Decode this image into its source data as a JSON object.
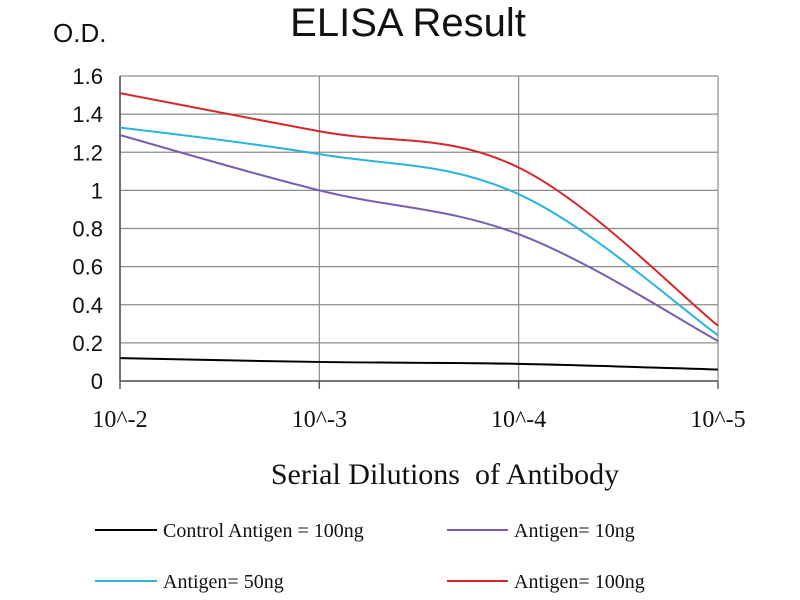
{
  "chart_data": {
    "type": "line",
    "title": "ELISA Result",
    "ylabel": "O.D.",
    "xlabel": "Serial Dilutions  of Antibody",
    "categories": [
      "10^-2",
      "10^-3",
      "10^-4",
      "10^-5"
    ],
    "ylim": [
      0,
      1.6
    ],
    "yticks": [
      "0",
      "0.2",
      "0.4",
      "0.6",
      "0.8",
      "1",
      "1.2",
      "1.4",
      "1.6"
    ],
    "grid": true,
    "legend_position": "bottom",
    "series": [
      {
        "name": "Control Antigen = 100ng",
        "color": "#000000",
        "values": [
          0.12,
          0.1,
          0.09,
          0.06
        ]
      },
      {
        "name": "Antigen= 10ng",
        "color": "#7a5cb0",
        "values": [
          1.29,
          1.0,
          0.77,
          0.21
        ]
      },
      {
        "name": "Antigen= 50ng",
        "color": "#2ab4dc",
        "values": [
          1.33,
          1.19,
          0.98,
          0.24
        ]
      },
      {
        "name": "Antigen= 100ng",
        "color": "#d62728",
        "values": [
          1.51,
          1.31,
          1.12,
          0.29
        ]
      }
    ]
  }
}
